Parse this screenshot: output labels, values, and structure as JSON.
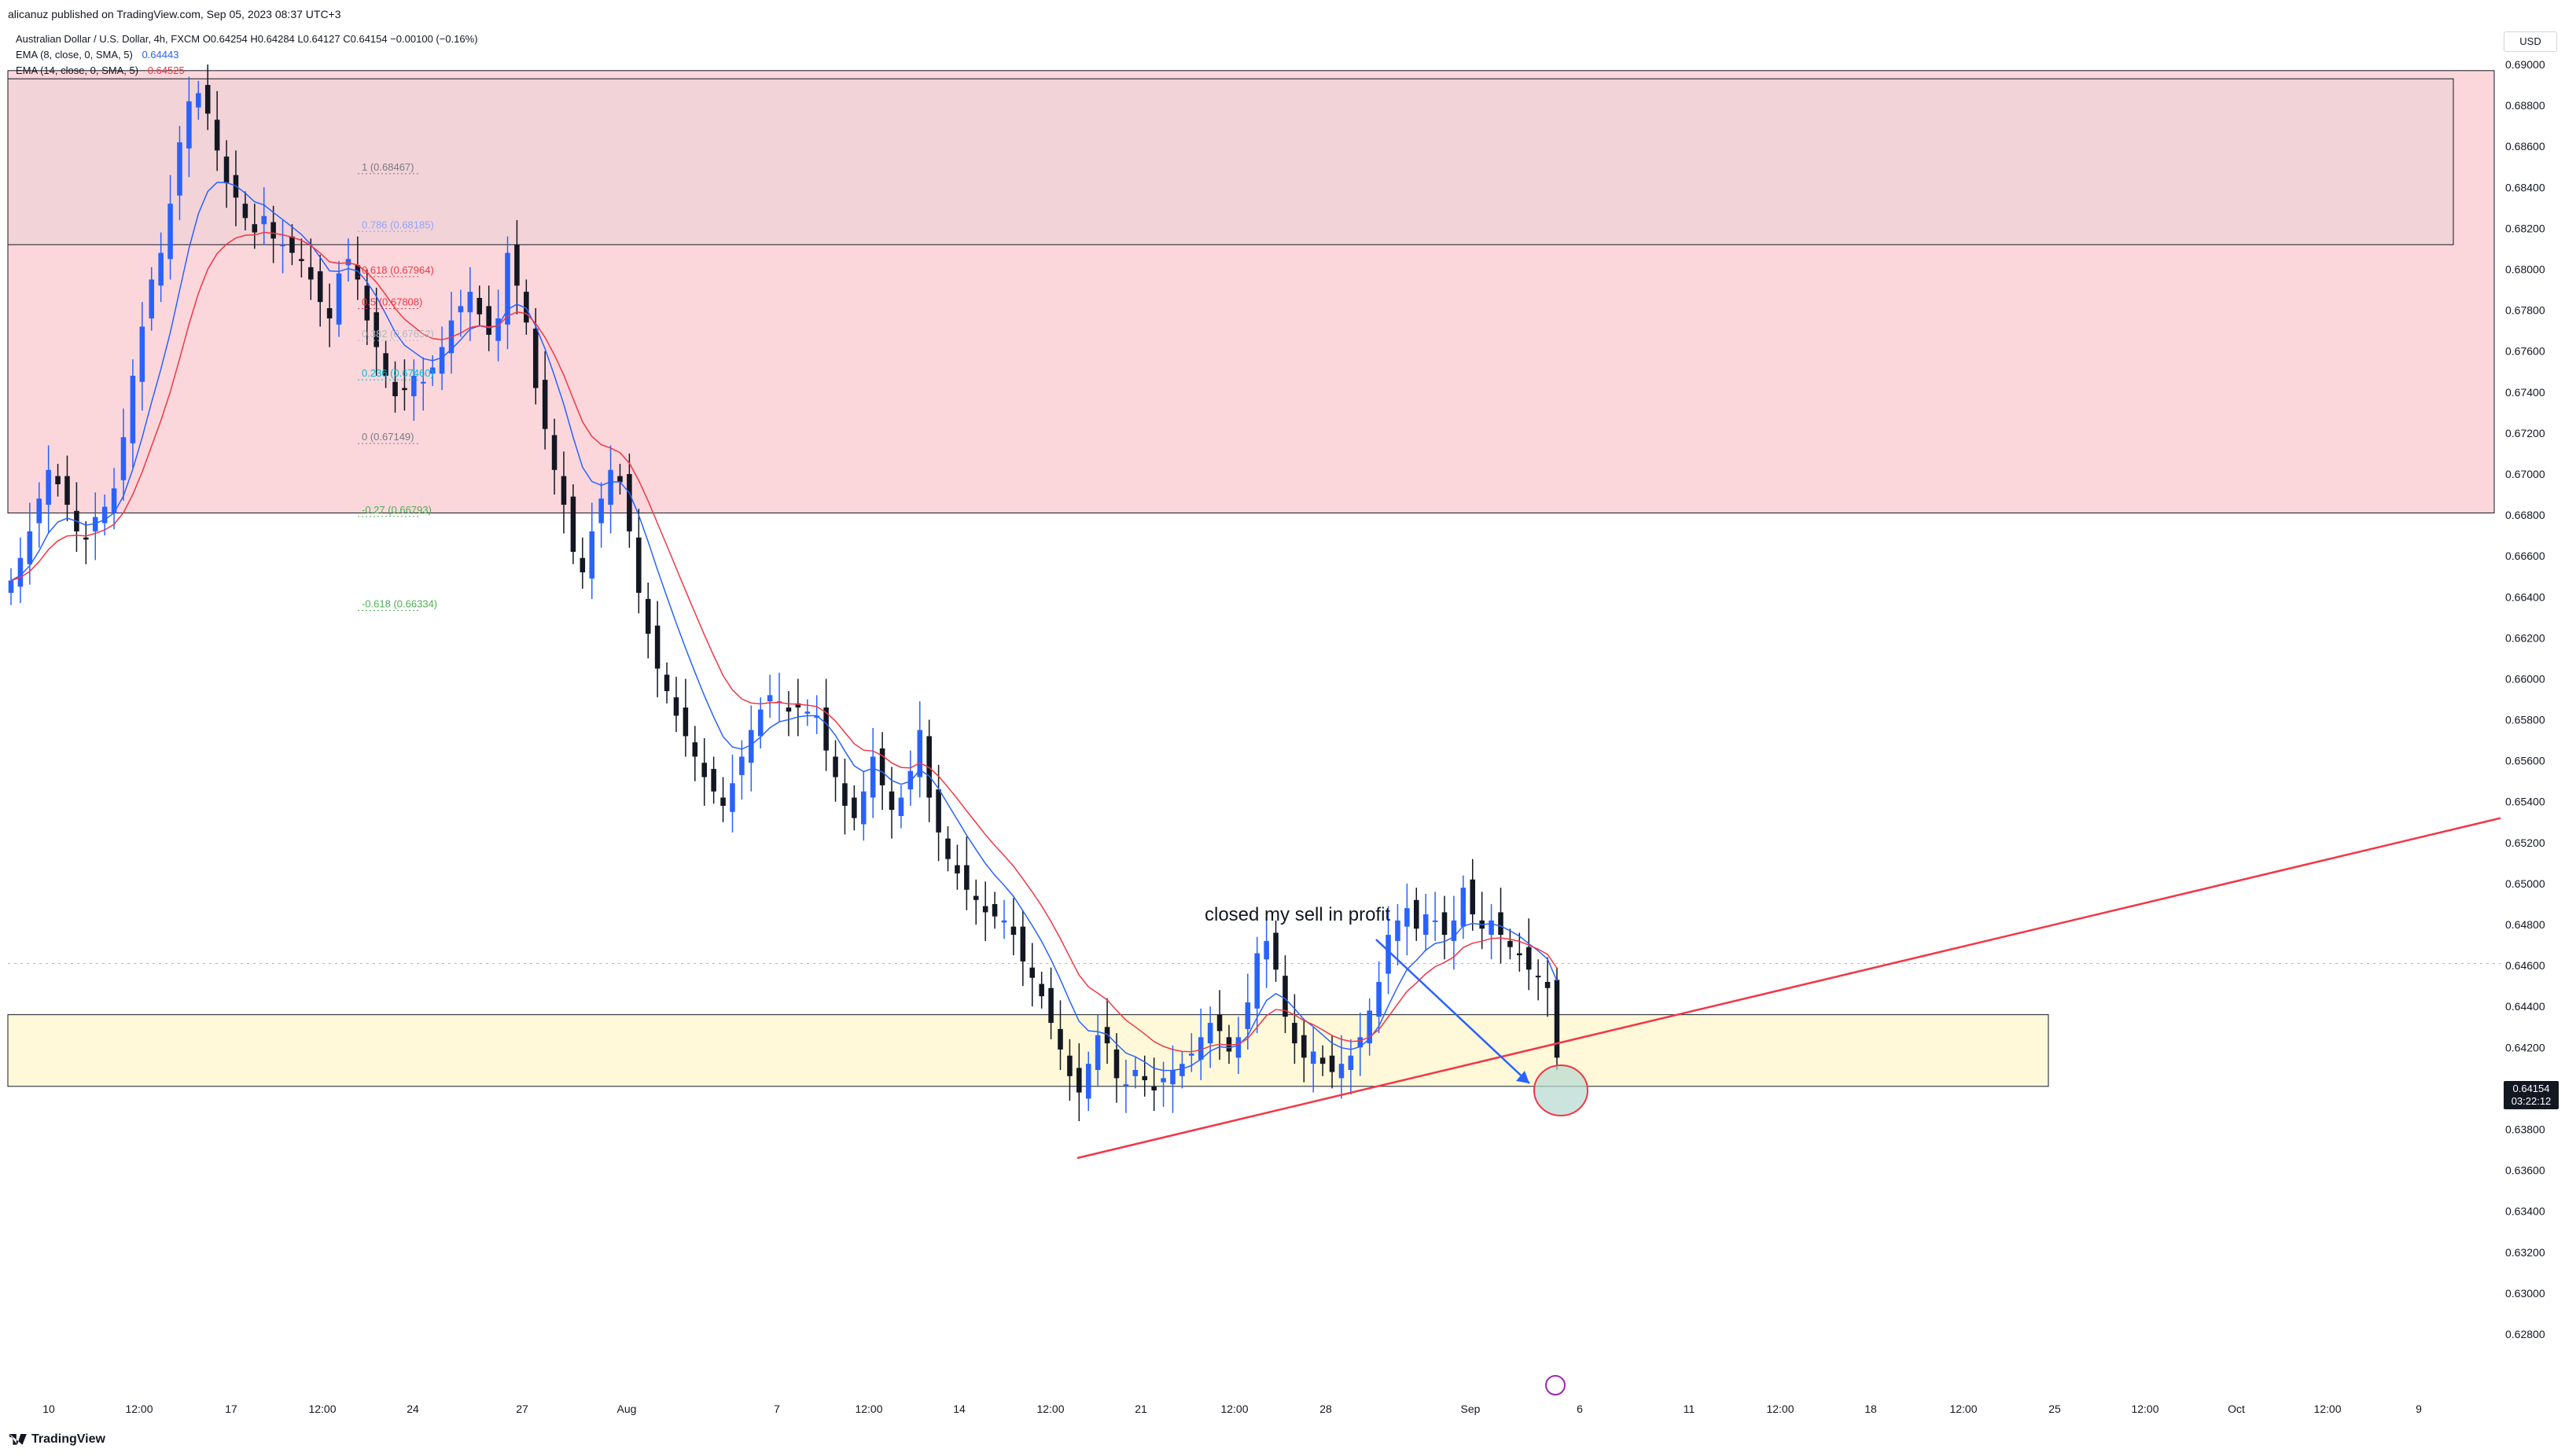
{
  "header": {
    "published": "alicanuz published on TradingView.com, Sep 05, 2023 08:37 UTC+3",
    "symbol_line": "Australian Dollar / U.S. Dollar, 4h, FXCM  O0.64254  H0.64284  L0.64127  C0.64154  −0.00100 (−0.16%)",
    "ema1_label": "EMA (8, close, 0, SMA, 5)",
    "ema1_value": "0.64443",
    "ema2_label": "EMA (14, close, 0, SMA, 5)",
    "ema2_value": "0.64525"
  },
  "colors": {
    "up_candle": "#2962ff",
    "down_candle": "#131722",
    "ema_fast": "#2962ff",
    "ema_slow": "#f23645",
    "supply_zone": "#fbd7dc",
    "demand_zone": "#fff9d9",
    "trendline": "#f23645",
    "fib_236": "#00bcd4",
    "fib_382": "#f23645",
    "fib_618": "#4caf50"
  },
  "currency": "USD",
  "price_tag": {
    "price": "0.64154",
    "countdown": "03:22:12"
  },
  "annotation_text": "closed my sell in profit",
  "fib_levels": [
    {
      "label": "1 (0.68467)",
      "price": 0.68467
    },
    {
      "label": "0.786 (0.68185)",
      "price": 0.68185
    },
    {
      "label": "0.618 (0.67964)",
      "price": 0.67964
    },
    {
      "label": "0.5 (0.67808)",
      "price": 0.67808
    },
    {
      "label": "0.382 (0.67652)",
      "price": 0.67652
    },
    {
      "label": "0.236 (0.67460)",
      "price": 0.6746
    },
    {
      "label": "0 (0.67149)",
      "price": 0.67149
    },
    {
      "label": "-0.27 (0.66793)",
      "price": 0.66793
    },
    {
      "label": "-0.618 (0.66334)",
      "price": 0.66334
    }
  ],
  "chart_data": {
    "type": "line",
    "title": "Australian Dollar / U.S. Dollar, 4h, FXCM",
    "xlabel": "",
    "ylabel": "",
    "ylim": [
      0.627,
      0.691
    ],
    "price_ticks": [
      "0.69000",
      "0.68800",
      "0.68600",
      "0.68400",
      "0.68200",
      "0.68000",
      "0.67800",
      "0.67600",
      "0.67400",
      "0.67200",
      "0.67000",
      "0.66800",
      "0.66600",
      "0.66400",
      "0.66200",
      "0.66000",
      "0.65800",
      "0.65600",
      "0.65400",
      "0.65200",
      "0.65000",
      "0.64800",
      "0.64600",
      "0.64400",
      "0.64200",
      "0.64000",
      "0.63800",
      "0.63600",
      "0.63400",
      "0.63200",
      "0.63000",
      "0.62800"
    ],
    "time_ticks": [
      "10",
      "12:00",
      "17",
      "12:00",
      "24",
      "27",
      "Aug",
      "7",
      "12:00",
      "14",
      "12:00",
      "21",
      "12:00",
      "28",
      "Sep",
      "6",
      "11",
      "12:00",
      "18",
      "12:00",
      "25",
      "12:00",
      "Oct",
      "12:00",
      "9"
    ],
    "close_series": [
      0.6648,
      0.6659,
      0.6672,
      0.6688,
      0.6702,
      0.6695,
      0.6685,
      0.6672,
      0.6668,
      0.6679,
      0.6684,
      0.6693,
      0.6718,
      0.6748,
      0.6772,
      0.6795,
      0.6808,
      0.6832,
      0.6862,
      0.6882,
      0.6886,
      0.6876,
      0.6858,
      0.6842,
      0.6835,
      0.6825,
      0.6818,
      0.6826,
      0.6815,
      0.6812,
      0.6808,
      0.6804,
      0.6795,
      0.6784,
      0.6776,
      0.6798,
      0.6805,
      0.6795,
      0.6775,
      0.6762,
      0.6748,
      0.6738,
      0.6741,
      0.6748,
      0.6745,
      0.6752,
      0.6762,
      0.6775,
      0.6782,
      0.6789,
      0.6778,
      0.6768,
      0.6776,
      0.6808,
      0.6792,
      0.6774,
      0.6742,
      0.6722,
      0.6702,
      0.6685,
      0.6662,
      0.6652,
      0.6672,
      0.6688,
      0.6702,
      0.6696,
      0.6672,
      0.6642,
      0.6622,
      0.6605,
      0.6594,
      0.6582,
      0.6572,
      0.6562,
      0.6552,
      0.6545,
      0.6538,
      0.6549,
      0.6562,
      0.6575,
      0.6585,
      0.6592,
      0.6589,
      0.6584,
      0.6586,
      0.6584,
      0.6582,
      0.6565,
      0.6552,
      0.6538,
      0.6532,
      0.6545,
      0.6562,
      0.6548,
      0.6536,
      0.6542,
      0.6555,
      0.6575,
      0.6542,
      0.6525,
      0.6512,
      0.6505,
      0.6497,
      0.6492,
      0.6486,
      0.6484,
      0.6482,
      0.6475,
      0.6462,
      0.6454,
      0.6445,
      0.6432,
      0.6419,
      0.6406,
      0.6398,
      0.6412,
      0.6426,
      0.6422,
      0.6405,
      0.6402,
      0.6409,
      0.6404,
      0.6399,
      0.6405,
      0.6409,
      0.6412,
      0.6417,
      0.6425,
      0.6432,
      0.6428,
      0.6418,
      0.6425,
      0.6442,
      0.6466,
      0.6472,
      0.6458,
      0.6435,
      0.6422,
      0.6415,
      0.6418,
      0.6412,
      0.6408,
      0.6412,
      0.6416,
      0.6425,
      0.6438,
      0.6452,
      0.6475,
      0.6482,
      0.6488,
      0.6478,
      0.6485,
      0.6482,
      0.6475,
      0.6482,
      0.6498,
      0.6485,
      0.6478,
      0.6482,
      0.6475,
      0.6469,
      0.6465,
      0.6458,
      0.6455,
      0.6449,
      0.6415
    ],
    "ema8_last": 0.64443,
    "ema14_last": 0.64525,
    "zones": [
      {
        "name": "supply",
        "from": 0.6681,
        "to": 0.6897
      },
      {
        "name": "supply-inner",
        "from": 0.6812,
        "to": 0.6893
      },
      {
        "name": "demand",
        "from": 0.6401,
        "to": 0.6436
      }
    ],
    "trendline": {
      "start": 0.6366,
      "end": 0.6532
    }
  }
}
